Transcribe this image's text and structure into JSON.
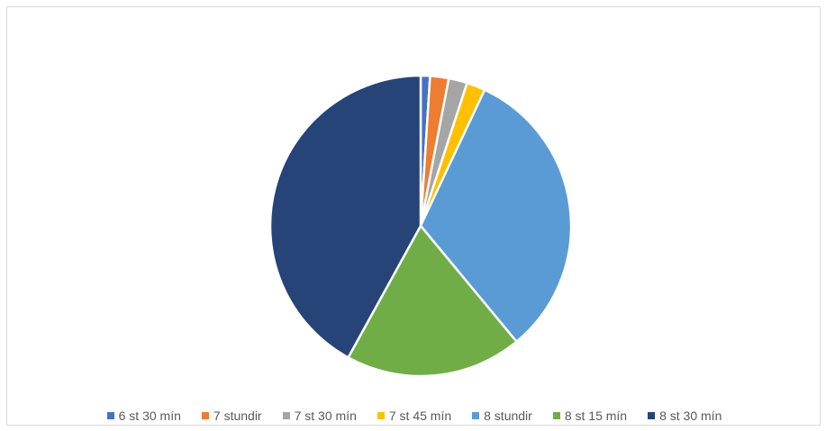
{
  "chart_data": {
    "type": "pie",
    "title": "",
    "start_angle_deg": 0,
    "direction": "clockwise",
    "legend_position": "bottom",
    "categories": [
      "6 st 30 mín",
      "7 stundir",
      "7 st 30 mín",
      "7 st 45 mín",
      "8 stundir",
      "8 st 15 mín",
      "8 st 30 mín"
    ],
    "values": [
      1,
      2,
      2,
      2,
      32,
      19,
      42
    ],
    "colors": [
      "#4472C4",
      "#ED7D31",
      "#A5A5A5",
      "#FFC000",
      "#5B9BD5",
      "#70AD47",
      "#264478"
    ]
  }
}
